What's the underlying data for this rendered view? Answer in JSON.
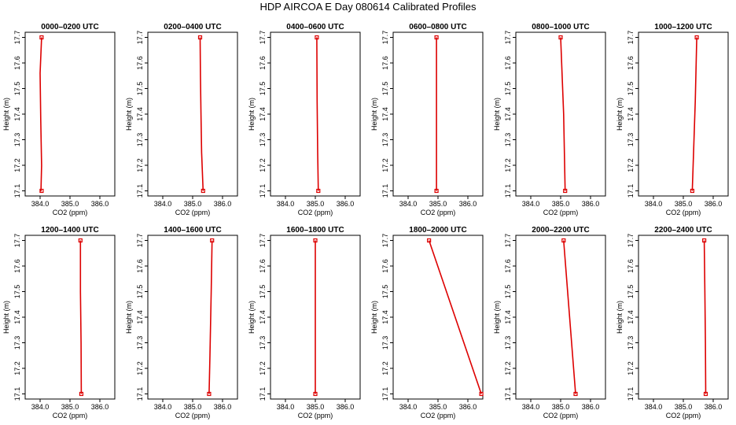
{
  "title": "HDP AIRCOA E  Day 080614  Calibrated Profiles",
  "colors": {
    "profile": "#dd0000",
    "axes": "#000000"
  },
  "chart_data": [
    {
      "type": "line",
      "title": "0000–0200 UTC",
      "xlabel": "CO2 (ppm)",
      "ylabel": "Height (m)",
      "xlim": [
        383.5,
        386.5
      ],
      "ylim": [
        17.08,
        17.72
      ],
      "xticks": [
        "384.0",
        "385.0",
        "386.0"
      ],
      "yticks": [
        "17.1",
        "17.2",
        "17.3",
        "17.4",
        "17.5",
        "17.6",
        "17.7"
      ],
      "series": [
        {
          "x": [
            384.05,
            384.0,
            384.02,
            384.05,
            384.03,
            384.05
          ],
          "y": [
            17.7,
            17.56,
            17.38,
            17.2,
            17.1,
            17.1
          ]
        }
      ]
    },
    {
      "type": "line",
      "title": "0200–0400 UTC",
      "xlabel": "CO2 (ppm)",
      "ylabel": "Height (m)",
      "xlim": [
        383.5,
        386.5
      ],
      "ylim": [
        17.08,
        17.72
      ],
      "xticks": [
        "384.0",
        "385.0",
        "386.0"
      ],
      "yticks": [
        "17.1",
        "17.2",
        "17.3",
        "17.4",
        "17.5",
        "17.6",
        "17.7"
      ],
      "series": [
        {
          "x": [
            385.25,
            385.26,
            385.28,
            385.3,
            385.35
          ],
          "y": [
            17.7,
            17.55,
            17.4,
            17.25,
            17.1
          ]
        }
      ]
    },
    {
      "type": "line",
      "title": "0400–0600 UTC",
      "xlabel": "CO2 (ppm)",
      "ylabel": "Height (m)",
      "xlim": [
        383.5,
        386.5
      ],
      "ylim": [
        17.08,
        17.72
      ],
      "xticks": [
        "384.0",
        "385.0",
        "386.0"
      ],
      "yticks": [
        "17.1",
        "17.2",
        "17.3",
        "17.4",
        "17.5",
        "17.6",
        "17.7"
      ],
      "series": [
        {
          "x": [
            385.05,
            385.06,
            385.08,
            385.1
          ],
          "y": [
            17.7,
            17.45,
            17.25,
            17.1
          ]
        }
      ]
    },
    {
      "type": "line",
      "title": "0600–0800 UTC",
      "xlabel": "CO2 (ppm)",
      "ylabel": "Height (m)",
      "xlim": [
        383.5,
        386.5
      ],
      "ylim": [
        17.08,
        17.72
      ],
      "xticks": [
        "384.0",
        "385.0",
        "386.0"
      ],
      "yticks": [
        "17.1",
        "17.2",
        "17.3",
        "17.4",
        "17.5",
        "17.6",
        "17.7"
      ],
      "series": [
        {
          "x": [
            384.95,
            384.95
          ],
          "y": [
            17.7,
            17.1
          ]
        }
      ]
    },
    {
      "type": "line",
      "title": "0800–1000 UTC",
      "xlabel": "CO2 (ppm)",
      "ylabel": "Height (m)",
      "xlim": [
        383.5,
        386.5
      ],
      "ylim": [
        17.08,
        17.72
      ],
      "xticks": [
        "384.0",
        "385.0",
        "386.0"
      ],
      "yticks": [
        "17.1",
        "17.2",
        "17.3",
        "17.4",
        "17.5",
        "17.6",
        "17.7"
      ],
      "series": [
        {
          "x": [
            385.0,
            385.1,
            385.15
          ],
          "y": [
            17.7,
            17.4,
            17.1
          ]
        }
      ]
    },
    {
      "type": "line",
      "title": "1000–1200 UTC",
      "xlabel": "CO2 (ppm)",
      "ylabel": "Height (m)",
      "xlim": [
        383.5,
        386.5
      ],
      "ylim": [
        17.08,
        17.72
      ],
      "xticks": [
        "384.0",
        "385.0",
        "386.0"
      ],
      "yticks": [
        "17.1",
        "17.2",
        "17.3",
        "17.4",
        "17.5",
        "17.6",
        "17.7"
      ],
      "series": [
        {
          "x": [
            385.45,
            385.4,
            385.3
          ],
          "y": [
            17.7,
            17.45,
            17.1
          ]
        }
      ]
    },
    {
      "type": "line",
      "title": "1200–1400 UTC",
      "xlabel": "CO2 (ppm)",
      "ylabel": "Height (m)",
      "xlim": [
        383.5,
        386.5
      ],
      "ylim": [
        17.08,
        17.72
      ],
      "xticks": [
        "384.0",
        "385.0",
        "386.0"
      ],
      "yticks": [
        "17.1",
        "17.2",
        "17.3",
        "17.4",
        "17.5",
        "17.6",
        "17.7"
      ],
      "series": [
        {
          "x": [
            385.35,
            385.35,
            385.37,
            385.38
          ],
          "y": [
            17.7,
            17.5,
            17.3,
            17.1
          ]
        }
      ]
    },
    {
      "type": "line",
      "title": "1400–1600 UTC",
      "xlabel": "CO2 (ppm)",
      "ylabel": "Height (m)",
      "xlim": [
        383.5,
        386.5
      ],
      "ylim": [
        17.08,
        17.72
      ],
      "xticks": [
        "384.0",
        "385.0",
        "386.0"
      ],
      "yticks": [
        "17.1",
        "17.2",
        "17.3",
        "17.4",
        "17.5",
        "17.6",
        "17.7"
      ],
      "series": [
        {
          "x": [
            385.65,
            385.62,
            385.58,
            385.55
          ],
          "y": [
            17.7,
            17.5,
            17.25,
            17.1
          ]
        }
      ]
    },
    {
      "type": "line",
      "title": "1600–1800 UTC",
      "xlabel": "CO2 (ppm)",
      "ylabel": "Height (m)",
      "xlim": [
        383.5,
        386.5
      ],
      "ylim": [
        17.08,
        17.72
      ],
      "xticks": [
        "384.0",
        "385.0",
        "386.0"
      ],
      "yticks": [
        "17.1",
        "17.2",
        "17.3",
        "17.4",
        "17.5",
        "17.6",
        "17.7"
      ],
      "series": [
        {
          "x": [
            385.0,
            385.0,
            385.0
          ],
          "y": [
            17.7,
            17.4,
            17.1
          ]
        }
      ]
    },
    {
      "type": "line",
      "title": "1800–2000 UTC",
      "xlabel": "CO2 (ppm)",
      "ylabel": "Height (m)",
      "xlim": [
        383.5,
        386.5
      ],
      "ylim": [
        17.08,
        17.72
      ],
      "xticks": [
        "384.0",
        "385.0",
        "386.0"
      ],
      "yticks": [
        "17.1",
        "17.2",
        "17.3",
        "17.4",
        "17.5",
        "17.6",
        "17.7"
      ],
      "series": [
        {
          "x": [
            384.7,
            386.45
          ],
          "y": [
            17.7,
            17.1
          ]
        }
      ]
    },
    {
      "type": "line",
      "title": "2000–2200 UTC",
      "xlabel": "CO2 (ppm)",
      "ylabel": "Height (m)",
      "xlim": [
        383.5,
        386.5
      ],
      "ylim": [
        17.08,
        17.72
      ],
      "xticks": [
        "384.0",
        "385.0",
        "386.0"
      ],
      "yticks": [
        "17.1",
        "17.2",
        "17.3",
        "17.4",
        "17.5",
        "17.6",
        "17.7"
      ],
      "series": [
        {
          "x": [
            385.1,
            385.3,
            385.5
          ],
          "y": [
            17.7,
            17.4,
            17.1
          ]
        }
      ]
    },
    {
      "type": "line",
      "title": "2200–2400 UTC",
      "xlabel": "CO2 (ppm)",
      "ylabel": "Height (m)",
      "xlim": [
        383.5,
        386.5
      ],
      "ylim": [
        17.08,
        17.72
      ],
      "xticks": [
        "384.0",
        "385.0",
        "386.0"
      ],
      "yticks": [
        "17.1",
        "17.2",
        "17.3",
        "17.4",
        "17.5",
        "17.6",
        "17.7"
      ],
      "series": [
        {
          "x": [
            385.7,
            385.72,
            385.74,
            385.75
          ],
          "y": [
            17.7,
            17.5,
            17.3,
            17.1
          ]
        }
      ]
    }
  ]
}
